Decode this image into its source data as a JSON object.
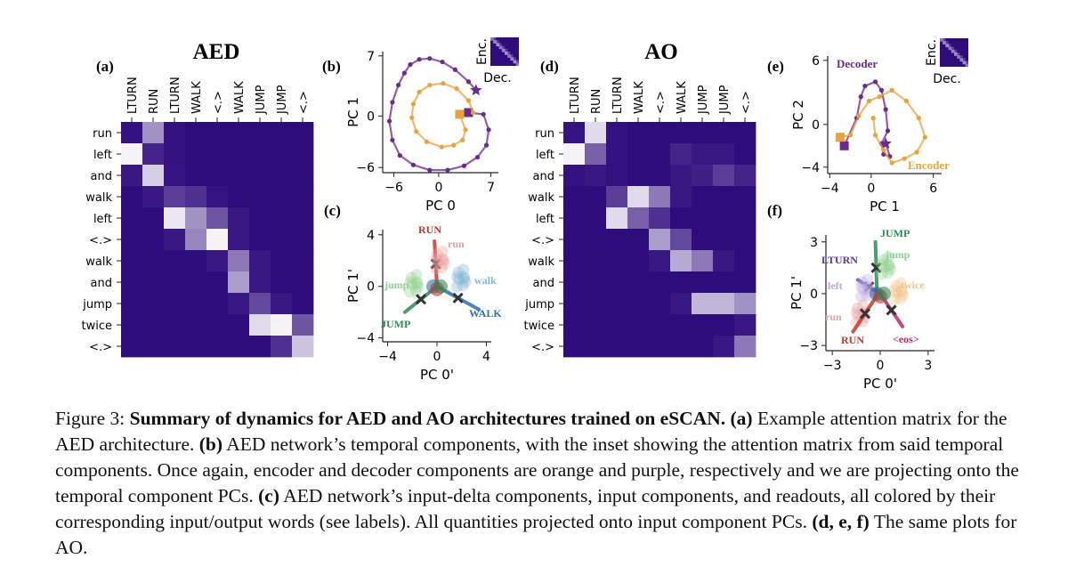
{
  "panels": {
    "a": {
      "label": "(a)",
      "title": "AED"
    },
    "b": {
      "label": "(b)"
    },
    "c": {
      "label": "(c)"
    },
    "d": {
      "label": "(d)",
      "title": "AO"
    },
    "e": {
      "label": "(e)"
    },
    "f": {
      "label": "(f)"
    }
  },
  "chart_data": [
    {
      "id": "a",
      "type": "heatmap",
      "title": "AED",
      "x_tick_labels": [
        "LTURN",
        "RUN",
        "LTURN",
        "WALK",
        "<.>",
        "WALK",
        "JUMP",
        "JUMP",
        "<.>"
      ],
      "y_tick_labels": [
        "run",
        "left",
        "and",
        "walk",
        "left",
        "<.>",
        "walk",
        "and",
        "jump",
        "twice",
        "<.>"
      ],
      "colormap": [
        "#2f0c7c",
        "#ffffff"
      ],
      "values": [
        [
          0.02,
          0.55,
          0.02,
          0.0,
          0.0,
          0.0,
          0.0,
          0.0,
          0.0
        ],
        [
          0.95,
          0.1,
          0.02,
          0.0,
          0.0,
          0.0,
          0.0,
          0.0,
          0.0
        ],
        [
          0.05,
          0.8,
          0.03,
          0.0,
          0.0,
          0.0,
          0.0,
          0.0,
          0.0
        ],
        [
          0.0,
          0.05,
          0.2,
          0.15,
          0.03,
          0.0,
          0.0,
          0.0,
          0.0
        ],
        [
          0.0,
          0.0,
          0.9,
          0.55,
          0.3,
          0.05,
          0.0,
          0.0,
          0.0
        ],
        [
          0.0,
          0.0,
          0.05,
          0.5,
          0.95,
          0.05,
          0.0,
          0.0,
          0.0
        ],
        [
          0.0,
          0.0,
          0.0,
          0.0,
          0.05,
          0.45,
          0.05,
          0.0,
          0.0
        ],
        [
          0.0,
          0.0,
          0.0,
          0.0,
          0.0,
          0.6,
          0.05,
          0.0,
          0.0
        ],
        [
          0.0,
          0.0,
          0.0,
          0.0,
          0.0,
          0.05,
          0.25,
          0.05,
          0.0
        ],
        [
          0.0,
          0.0,
          0.0,
          0.0,
          0.0,
          0.0,
          0.85,
          0.95,
          0.3
        ],
        [
          0.0,
          0.0,
          0.0,
          0.0,
          0.0,
          0.0,
          0.0,
          0.15,
          0.75
        ]
      ]
    },
    {
      "id": "b",
      "type": "line",
      "xlabel": "PC 0",
      "ylabel": "PC 1",
      "xlim": [
        -7.5,
        8
      ],
      "ylim": [
        -6.6,
        7.5
      ],
      "x_ticks": [
        -6,
        0,
        7
      ],
      "y_ticks": [
        -6,
        0,
        7
      ],
      "inset_labels": {
        "top": "Enc.",
        "bottom": "Dec."
      },
      "series": [
        {
          "color": "#6b2a8e",
          "marker": "dot",
          "start_marker": "square",
          "end_marker": "star",
          "role": "decoder",
          "x": [
            4.0,
            6.0,
            6.7,
            6.4,
            5.2,
            3.4,
            1.2,
            -1.2,
            -3.4,
            -5.2,
            -6.2,
            -6.6,
            -6.2,
            -5.4,
            -4.6,
            -3.8,
            -2.6,
            -1.2,
            0.5,
            2.2,
            4.0,
            5.0
          ],
          "y": [
            0.4,
            0.2,
            -1.6,
            -3.4,
            -4.8,
            -5.8,
            -6.3,
            -6.3,
            -5.7,
            -4.6,
            -2.8,
            -0.6,
            1.6,
            3.6,
            5.0,
            6.0,
            6.6,
            6.7,
            6.3,
            5.4,
            4.0,
            3.0
          ]
        },
        {
          "color": "#e8a33d",
          "marker": "dot",
          "start_marker": "square",
          "role": "encoder",
          "x": [
            2.8,
            3.6,
            3.2,
            2.0,
            0.4,
            -1.6,
            -3.0,
            -3.6,
            -3.4,
            -2.6,
            -1.2,
            0.6,
            2.4,
            4.0,
            4.6
          ],
          "y": [
            0.2,
            -1.6,
            -2.8,
            -3.4,
            -3.6,
            -3.0,
            -1.8,
            -0.2,
            1.4,
            2.8,
            3.6,
            3.8,
            3.2,
            1.8,
            0.4
          ]
        }
      ]
    },
    {
      "id": "c",
      "type": "scatter",
      "xlabel": "PC 0'",
      "ylabel": "PC 1'",
      "xlim": [
        -4.4,
        4.4
      ],
      "ylim": [
        -4.3,
        4.4
      ],
      "x_ticks": [
        -4,
        0,
        4
      ],
      "y_ticks": [
        -4,
        0,
        4
      ],
      "series": [
        {
          "name": "RUN",
          "color": "#c0392b",
          "x": [
            0.0,
            -0.2
          ],
          "y": [
            0.0,
            3.5
          ]
        },
        {
          "name": "run",
          "color": "#e8a0a0",
          "x": [
            0.3
          ],
          "y": [
            2.0
          ]
        },
        {
          "name": "walk",
          "color": "#7fb3d8",
          "x": [
            2.0
          ],
          "y": [
            0.6
          ]
        },
        {
          "name": "WALK",
          "color": "#2e6fae",
          "x": [
            0.0,
            3.4
          ],
          "y": [
            0.0,
            -1.8
          ]
        },
        {
          "name": "jump",
          "color": "#8fd18f",
          "x": [
            -1.8
          ],
          "y": [
            0.2
          ]
        },
        {
          "name": "JUMP",
          "color": "#2e8b57",
          "x": [
            0.0,
            -2.6
          ],
          "y": [
            0.0,
            -2.0
          ]
        }
      ]
    },
    {
      "id": "d",
      "type": "heatmap",
      "title": "AO",
      "x_tick_labels": [
        "LTURN",
        "RUN",
        "LTURN",
        "WALK",
        "<.>",
        "WALK",
        "JUMP",
        "JUMP",
        "<.>"
      ],
      "y_tick_labels": [
        "run",
        "left",
        "and",
        "walk",
        "left",
        "<.>",
        "walk",
        "and",
        "jump",
        "twice",
        "<.>"
      ],
      "colormap": [
        "#2f0c7c",
        "#ffffff"
      ],
      "values": [
        [
          0.03,
          0.85,
          0.02,
          0.0,
          0.0,
          0.0,
          0.0,
          0.0,
          0.0
        ],
        [
          0.95,
          0.35,
          0.02,
          0.0,
          0.0,
          0.1,
          0.05,
          0.05,
          0.0
        ],
        [
          0.02,
          0.05,
          0.02,
          0.0,
          0.0,
          0.05,
          0.08,
          0.2,
          0.1
        ],
        [
          0.0,
          0.0,
          0.2,
          0.85,
          0.45,
          0.05,
          0.0,
          0.0,
          0.0
        ],
        [
          0.0,
          0.0,
          0.85,
          0.35,
          0.15,
          0.0,
          0.0,
          0.0,
          0.0
        ],
        [
          0.0,
          0.0,
          0.0,
          0.0,
          0.6,
          0.25,
          0.0,
          0.0,
          0.0
        ],
        [
          0.0,
          0.0,
          0.0,
          0.0,
          0.05,
          0.65,
          0.45,
          0.05,
          0.0
        ],
        [
          0.0,
          0.0,
          0.0,
          0.0,
          0.0,
          0.0,
          0.0,
          0.0,
          0.0
        ],
        [
          0.0,
          0.0,
          0.0,
          0.0,
          0.0,
          0.05,
          0.7,
          0.7,
          0.55
        ],
        [
          0.0,
          0.0,
          0.0,
          0.0,
          0.0,
          0.0,
          0.0,
          0.0,
          0.05
        ],
        [
          0.0,
          0.0,
          0.0,
          0.0,
          0.0,
          0.0,
          0.0,
          0.05,
          0.45
        ]
      ]
    },
    {
      "id": "e",
      "type": "line",
      "xlabel": "PC 1",
      "ylabel": "PC 2",
      "xlim": [
        -4.2,
        6.8
      ],
      "ylim": [
        -4.6,
        6.4
      ],
      "x_ticks": [
        -4,
        0,
        6
      ],
      "y_ticks": [
        -4,
        0,
        6
      ],
      "inset_labels": {
        "top": "Enc.",
        "bottom": "Dec."
      },
      "series": [
        {
          "name": "Decoder",
          "color": "#6b2a8e",
          "marker": "dot",
          "start_marker": "square",
          "end_marker": "star",
          "x": [
            -2.6,
            -1.4,
            -1.0,
            -0.6,
            0.4,
            1.0,
            1.4,
            1.6,
            1.0,
            1.2,
            1.8,
            1.4
          ],
          "y": [
            -2.0,
            0.6,
            2.6,
            3.6,
            4.0,
            3.2,
            1.4,
            -0.6,
            -1.8,
            -2.8,
            -3.0,
            -1.8
          ]
        },
        {
          "name": "Encoder",
          "color": "#e8a33d",
          "marker": "dot",
          "start_marker": "square",
          "x": [
            -3.0,
            -2.0,
            -1.2,
            -0.2,
            0.8,
            2.0,
            3.4,
            4.6,
            5.2,
            4.4,
            3.2,
            2.0,
            1.2,
            0.4,
            0.2
          ],
          "y": [
            -1.2,
            -1.0,
            0.8,
            2.2,
            2.6,
            3.2,
            2.2,
            0.6,
            -1.2,
            -2.6,
            -3.2,
            -3.6,
            -2.4,
            -1.0,
            0.6
          ]
        }
      ]
    },
    {
      "id": "f",
      "type": "scatter",
      "xlabel": "PC 0'",
      "ylabel": "PC 1'",
      "xlim": [
        -3.4,
        3.4
      ],
      "ylim": [
        -3.3,
        3.4
      ],
      "x_ticks": [
        -3,
        0,
        3
      ],
      "y_ticks": [
        -3,
        0,
        3
      ],
      "series": [
        {
          "name": "JUMP",
          "color": "#2e8b57",
          "x": [
            -0.2,
            -0.3
          ],
          "y": [
            0.0,
            3.0
          ]
        },
        {
          "name": "jump",
          "color": "#8fd18f",
          "x": [
            0.4
          ],
          "y": [
            1.6
          ]
        },
        {
          "name": "LTURN",
          "color": "#5b3aa8",
          "x": [
            0.0,
            -1.4
          ],
          "y": [
            0.0,
            0.8
          ]
        },
        {
          "name": "left",
          "color": "#b9a6e6",
          "x": [
            -0.9
          ],
          "y": [
            0.3
          ]
        },
        {
          "name": "twice",
          "color": "#f2c48a",
          "x": [
            1.2
          ],
          "y": [
            0.1
          ]
        },
        {
          "name": "run",
          "color": "#e8a0a0",
          "x": [
            -1.2
          ],
          "y": [
            -1.2
          ]
        },
        {
          "name": "RUN",
          "color": "#c0392b",
          "x": [
            -0.2,
            -1.7
          ],
          "y": [
            -0.1,
            -2.2
          ]
        },
        {
          "name": "<eos>",
          "color": "#c0266d",
          "x": [
            0.0,
            1.4
          ],
          "y": [
            0.0,
            -1.9
          ]
        }
      ]
    }
  ],
  "caption": {
    "figure": "Figure 3:",
    "title": "Summary of dynamics for AED and AO architectures trained on eSCAN.",
    "a_label": "(a)",
    "a_text": "Example attention matrix for the AED architecture.",
    "b_label": "(b)",
    "b_text": "AED network’s temporal components, with the inset showing the attention matrix from said temporal components. Once again, encoder and decoder components are orange and purple, respectively and we are projecting onto the temporal component PCs.",
    "c_label": "(c)",
    "c_text": "AED network’s input-delta components, input components, and readouts, all colored by their corresponding input/output words (see labels). All quantities projected onto input component PCs.",
    "def_label": "(d, e, f)",
    "def_text": "The same plots for AO."
  }
}
